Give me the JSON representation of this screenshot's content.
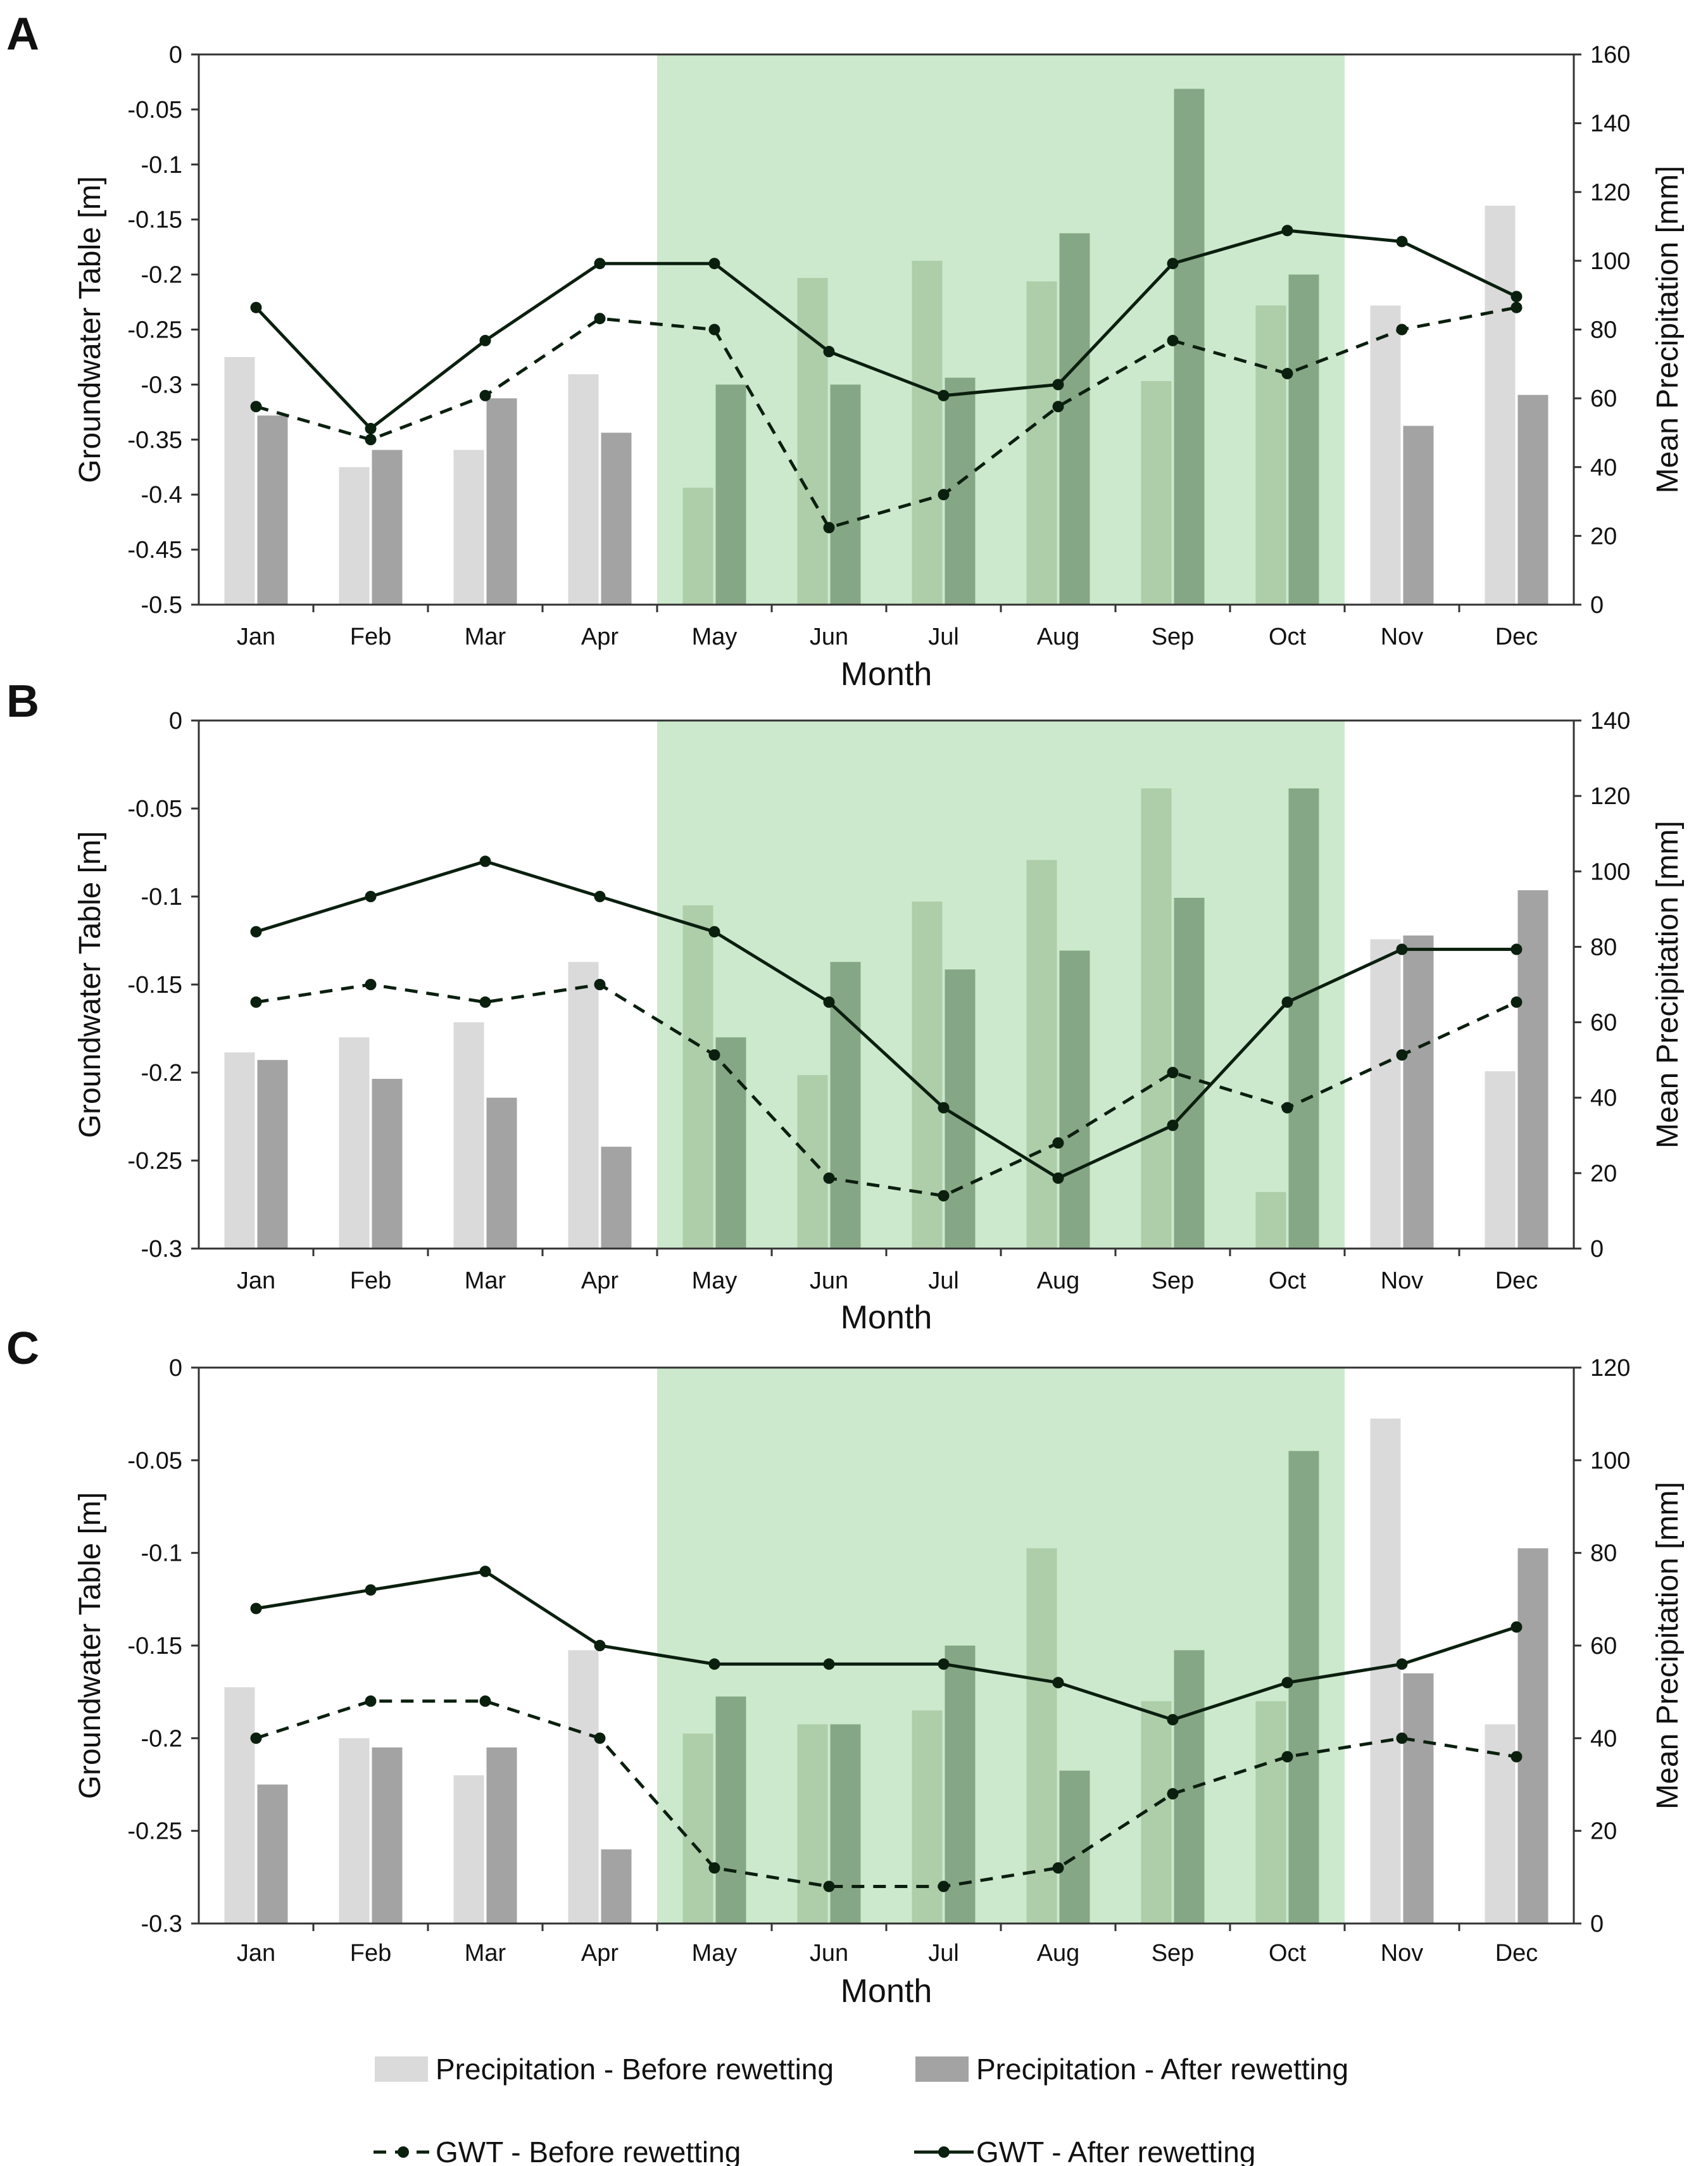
{
  "legend": {
    "precip_before": "Precipitation - Before rewetting",
    "precip_after": "Precipitation - After rewetting",
    "gwt_before": "GWT - Before rewetting",
    "gwt_after": "GWT  - After rewetting"
  },
  "colors": {
    "precip_before": "#dadada",
    "precip_after": "#a3a3a3",
    "precip_before_season": "#aecda9",
    "precip_after_season": "#86a785",
    "season_shade": "#cce9cd",
    "gwt_line": "#0b1f0f"
  },
  "chart_data": [
    {
      "type": "bar",
      "panel": "A",
      "categories": [
        "Jan",
        "Feb",
        "Mar",
        "Apr",
        "May",
        "Jun",
        "Jul",
        "Aug",
        "Sep",
        "Oct",
        "Nov",
        "Dec"
      ],
      "xlabel": "Month",
      "ylabel_left": "Groundwater Table [m]",
      "ylabel_right": "Mean Precipitation [mm]",
      "ylim_left": [
        -0.5,
        0
      ],
      "ylim_right": [
        0,
        160
      ],
      "left_ticks": [
        "0",
        "-0.05",
        "-0.1",
        "-0.15",
        "-0.2",
        "-0.25",
        "-0.3",
        "-0.35",
        "-0.4",
        "-0.45",
        "-0.5"
      ],
      "right_ticks": [
        "160",
        "140",
        "120",
        "100",
        "80",
        "60",
        "40",
        "20",
        "0"
      ],
      "season_range": [
        "May",
        "Oct"
      ],
      "series": [
        {
          "name": "Precipitation - Before rewetting",
          "axis": "right",
          "kind": "bar",
          "values": [
            72,
            40,
            45,
            67,
            34,
            95,
            100,
            94,
            65,
            87,
            87,
            116
          ]
        },
        {
          "name": "Precipitation - After rewetting",
          "axis": "right",
          "kind": "bar",
          "values": [
            55,
            45,
            60,
            50,
            64,
            64,
            66,
            108,
            150,
            96,
            52,
            61
          ]
        },
        {
          "name": "GWT - Before rewetting",
          "axis": "left",
          "kind": "line-dashed",
          "values": [
            -0.32,
            -0.35,
            -0.31,
            -0.24,
            -0.25,
            -0.43,
            -0.4,
            -0.32,
            -0.26,
            -0.29,
            -0.25,
            -0.23
          ]
        },
        {
          "name": "GWT - After rewetting",
          "axis": "left",
          "kind": "line-solid",
          "values": [
            -0.23,
            -0.34,
            -0.26,
            -0.19,
            -0.19,
            -0.27,
            -0.31,
            -0.3,
            -0.19,
            -0.16,
            -0.17,
            -0.22
          ]
        }
      ]
    },
    {
      "type": "bar",
      "panel": "B",
      "categories": [
        "Jan",
        "Feb",
        "Mar",
        "Apr",
        "May",
        "Jun",
        "Jul",
        "Aug",
        "Sep",
        "Oct",
        "Nov",
        "Dec"
      ],
      "xlabel": "Month",
      "ylabel_left": "Groundwater Table [m]",
      "ylabel_right": "Mean Precipitation [mm]",
      "ylim_left": [
        -0.3,
        0
      ],
      "ylim_right": [
        0,
        140
      ],
      "left_ticks": [
        "0",
        "-0.05",
        "-0.1",
        "-0.15",
        "-0.2",
        "-0.25",
        "-0.3"
      ],
      "right_ticks": [
        "140",
        "120",
        "100",
        "80",
        "60",
        "40",
        "20",
        "0"
      ],
      "season_range": [
        "May",
        "Oct"
      ],
      "series": [
        {
          "name": "Precipitation - Before rewetting",
          "axis": "right",
          "kind": "bar",
          "values": [
            52,
            56,
            60,
            76,
            91,
            46,
            92,
            103,
            122,
            15,
            82,
            47
          ]
        },
        {
          "name": "Precipitation - After rewetting",
          "axis": "right",
          "kind": "bar",
          "values": [
            50,
            45,
            40,
            27,
            56,
            76,
            74,
            79,
            93,
            122,
            83,
            95
          ]
        },
        {
          "name": "GWT - Before rewetting",
          "axis": "left",
          "kind": "line-dashed",
          "values": [
            -0.16,
            -0.15,
            -0.16,
            -0.15,
            -0.19,
            -0.26,
            -0.27,
            -0.24,
            -0.2,
            -0.22,
            -0.19,
            -0.16
          ]
        },
        {
          "name": "GWT - After rewetting",
          "axis": "left",
          "kind": "line-solid",
          "values": [
            -0.12,
            -0.1,
            -0.08,
            -0.1,
            -0.12,
            -0.16,
            -0.22,
            -0.26,
            -0.23,
            -0.16,
            -0.13,
            -0.13
          ]
        }
      ]
    },
    {
      "type": "bar",
      "panel": "C",
      "categories": [
        "Jan",
        "Feb",
        "Mar",
        "Apr",
        "May",
        "Jun",
        "Jul",
        "Aug",
        "Sep",
        "Oct",
        "Nov",
        "Dec"
      ],
      "xlabel": "Month",
      "ylabel_left": "Groundwater Table [m]",
      "ylabel_right": "Mean Precipitation [mm]",
      "ylim_left": [
        -0.3,
        0
      ],
      "ylim_right": [
        0,
        120
      ],
      "left_ticks": [
        "0",
        "-0.05",
        "-0.1",
        "-0.15",
        "-0.2",
        "-0.25",
        "-0.3"
      ],
      "right_ticks": [
        "120",
        "100",
        "80",
        "60",
        "40",
        "20",
        "0"
      ],
      "season_range": [
        "May",
        "Oct"
      ],
      "series": [
        {
          "name": "Precipitation - Before rewetting",
          "axis": "right",
          "kind": "bar",
          "values": [
            51,
            40,
            32,
            59,
            41,
            43,
            46,
            81,
            48,
            48,
            109,
            43
          ]
        },
        {
          "name": "Precipitation - After rewetting",
          "axis": "right",
          "kind": "bar",
          "values": [
            30,
            38,
            38,
            16,
            49,
            43,
            60,
            33,
            59,
            102,
            54,
            81
          ]
        },
        {
          "name": "GWT - Before rewetting",
          "axis": "left",
          "kind": "line-dashed",
          "values": [
            -0.2,
            -0.18,
            -0.18,
            -0.2,
            -0.27,
            -0.28,
            -0.28,
            -0.27,
            -0.23,
            -0.21,
            -0.2,
            -0.21
          ]
        },
        {
          "name": "GWT - After rewetting",
          "axis": "left",
          "kind": "line-solid",
          "values": [
            -0.13,
            -0.12,
            -0.11,
            -0.15,
            -0.16,
            -0.16,
            -0.16,
            -0.17,
            -0.19,
            -0.17,
            -0.16,
            -0.14
          ]
        }
      ]
    }
  ]
}
